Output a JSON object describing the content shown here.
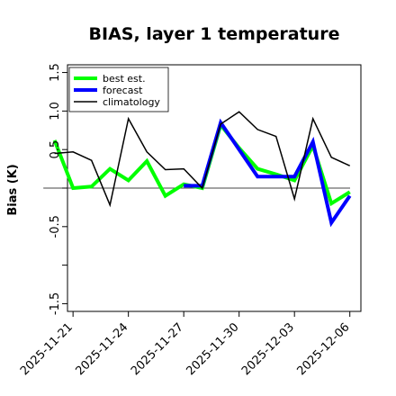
{
  "chart_data": {
    "type": "line",
    "title": "BIAS, layer 1 temperature",
    "xlabel": "",
    "ylabel": "Bias (K)",
    "ylim": [
      -1.6,
      1.6
    ],
    "yticks": [
      -1.5,
      -0.5,
      0.5,
      1.0,
      1.5
    ],
    "yticklabels": [
      "-1.5",
      "-0.5",
      "0.5",
      "1.0",
      "1.5"
    ],
    "xlim_days": [
      -0.3,
      15.6
    ],
    "xticks": [
      {
        "day": 0,
        "label": "2025-11-21",
        "color": "#000000"
      },
      {
        "day": 3,
        "label": "2025-11-24",
        "color": "#000000"
      },
      {
        "day": 6,
        "label": "2025-11-27",
        "color": "#008000"
      },
      {
        "day": 9,
        "label": "2025-11-30",
        "color": "#000000"
      },
      {
        "day": 12,
        "label": "2025-12-03",
        "color": "#000000"
      },
      {
        "day": 15,
        "label": "2025-12-06",
        "color": "#000000"
      }
    ],
    "hline": 0,
    "grid": false,
    "legend_position": "top-left",
    "series": [
      {
        "name": "best est.",
        "color": "#00ff00",
        "width": 4,
        "x": [
          "2025-11-20",
          "2025-11-21",
          "2025-11-22",
          "2025-11-23",
          "2025-11-24",
          "2025-11-25",
          "2025-11-26",
          "2025-11-27",
          "2025-11-28",
          "2025-11-29",
          "2025-11-30",
          "2025-12-01",
          "2025-12-02",
          "2025-12-03",
          "2025-12-04",
          "2025-12-05",
          "2025-12-06"
        ],
        "y": [
          0.62,
          0.0,
          0.02,
          0.25,
          0.1,
          0.35,
          -0.1,
          0.05,
          0.0,
          0.82,
          0.52,
          0.25,
          0.18,
          0.1,
          0.55,
          -0.2,
          -0.05
        ]
      },
      {
        "name": "forecast",
        "color": "#0000ff",
        "width": 4,
        "x": [
          "2025-11-27",
          "2025-11-28",
          "2025-11-29",
          "2025-11-30",
          "2025-12-01",
          "2025-12-02",
          "2025-12-03",
          "2025-12-04",
          "2025-12-05",
          "2025-12-06"
        ],
        "y": [
          0.03,
          0.03,
          0.85,
          0.5,
          0.15,
          0.15,
          0.15,
          0.6,
          -0.45,
          -0.1
        ]
      },
      {
        "name": "climatology",
        "color": "#000000",
        "width": 1.5,
        "x": [
          "2025-11-20",
          "2025-11-21",
          "2025-11-22",
          "2025-11-23",
          "2025-11-24",
          "2025-11-25",
          "2025-11-26",
          "2025-11-27",
          "2025-11-28",
          "2025-11-29",
          "2025-11-30",
          "2025-12-01",
          "2025-12-02",
          "2025-12-03",
          "2025-12-04",
          "2025-12-05",
          "2025-12-06"
        ],
        "y": [
          0.45,
          0.47,
          0.36,
          -0.22,
          0.9,
          0.47,
          0.24,
          0.25,
          0.0,
          0.83,
          0.99,
          0.76,
          0.67,
          -0.14,
          0.9,
          0.4,
          0.29
        ]
      }
    ]
  }
}
